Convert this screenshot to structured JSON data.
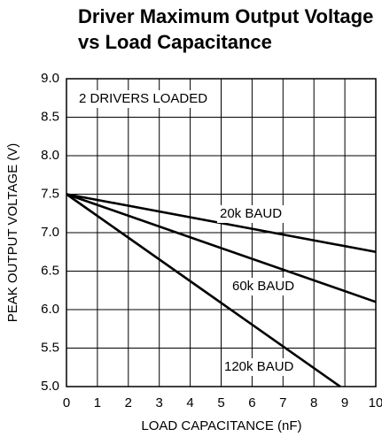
{
  "chart_data": {
    "type": "line",
    "title": [
      "Driver Maximum Output Voltage",
      "vs Load Capacitance"
    ],
    "xlabel": "LOAD CAPACITANCE (nF)",
    "ylabel": "PEAK OUTPUT VOLTAGE (V)",
    "annotations": [
      "2 DRIVERS LOADED",
      "20k BAUD",
      "60k BAUD",
      "120k BAUD"
    ],
    "series": [
      {
        "name": "20k BAUD",
        "color": "#000000",
        "x": [
          0,
          10
        ],
        "values": [
          7.5,
          6.75
        ]
      },
      {
        "name": "60k BAUD",
        "color": "#000000",
        "x": [
          0,
          10
        ],
        "values": [
          7.5,
          6.1
        ]
      },
      {
        "name": "120k BAUD",
        "color": "#000000",
        "x": [
          0,
          8.85
        ],
        "values": [
          7.5,
          5.0
        ]
      }
    ],
    "xlim": [
      0,
      10
    ],
    "xticks": [
      0,
      1,
      2,
      3,
      4,
      5,
      6,
      7,
      8,
      9,
      10
    ],
    "ylim": [
      5,
      9
    ],
    "yticks": [
      {
        "value": 5,
        "label": "5.0"
      },
      {
        "value": 5.5,
        "label": "5.5"
      },
      {
        "value": 6,
        "label": "6.0"
      },
      {
        "value": 6.5,
        "label": "6.5"
      },
      {
        "value": 7,
        "label": "7.0"
      },
      {
        "value": 7.5,
        "label": "7.5"
      },
      {
        "value": 8,
        "label": "8.0"
      },
      {
        "value": 8.5,
        "label": "8.5"
      },
      {
        "value": 9,
        "label": "9.0"
      }
    ],
    "grid": true
  }
}
